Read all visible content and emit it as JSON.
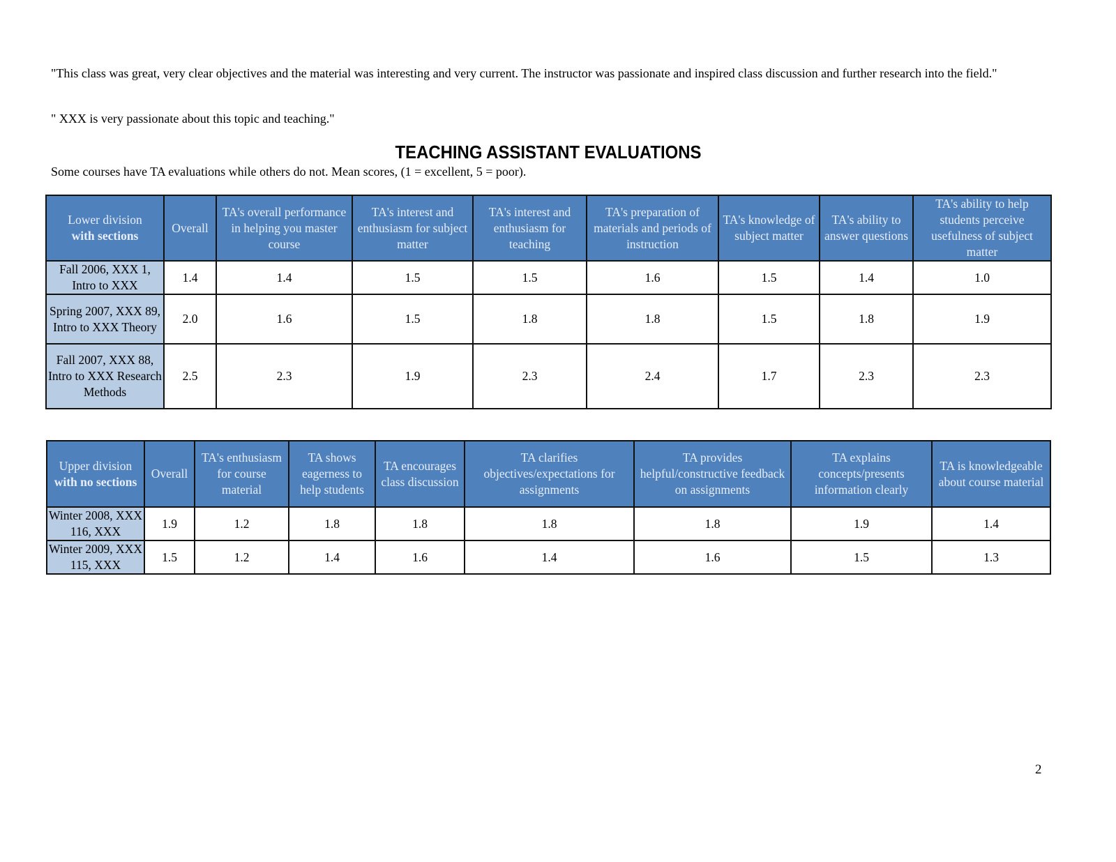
{
  "quotes": [
    "\"This class was great, very clear objectives and the material was interesting and very current. The instructor was passionate and inspired class discussion and further research into the field.\"",
    "\" XXX is very passionate about this topic and teaching.\""
  ],
  "section_title": "TEACHING ASSISTANT EVALUATIONS",
  "subtitle": "Some courses have TA evaluations while others do not. Mean scores, (1 = excellent, 5 = poor).",
  "colors": {
    "header_bg": "#4f81bd",
    "row_header_bg": "#b8cce4"
  },
  "lower_division": {
    "corner_line1": "Lower division",
    "corner_line2": "with sections",
    "headers": [
      "Overall",
      "TA's overall performance in helping you master course",
      "TA's interest and enthusiasm for subject matter",
      "TA's interest and enthusiasm for teaching",
      "TA's preparation of materials and periods of instruction",
      "TA's knowledge of subject matter",
      "TA's ability to answer questions",
      "TA's ability to help students perceive usefulness of subject matter"
    ],
    "rows": [
      {
        "course": "Fall 2006, XXX 1, Intro to XXX",
        "values": [
          "1.4",
          "1.4",
          "1.5",
          "1.5",
          "1.6",
          "1.5",
          "1.4",
          "1.0"
        ]
      },
      {
        "course": "Spring 2007, XXX 89, Intro to XXX Theory",
        "values": [
          "2.0",
          "1.6",
          "1.5",
          "1.8",
          "1.8",
          "1.5",
          "1.8",
          "1.9"
        ]
      },
      {
        "course": "Fall 2007, XXX 88, Intro to XXX Research Methods",
        "values": [
          "2.5",
          "2.3",
          "1.9",
          "2.3",
          "2.4",
          "1.7",
          "2.3",
          "2.3"
        ]
      }
    ]
  },
  "upper_division": {
    "corner_line1": "Upper division",
    "corner_line2": "with no sections",
    "headers": [
      "Overall",
      "TA's enthusiasm for course material",
      "TA shows eagerness to help students",
      "TA encourages class discussion",
      "TA clarifies objectives/expectations for assignments",
      "TA provides helpful/constructive feedback on assignments",
      "TA explains concepts/presents information clearly",
      "TA is knowledgeable about course material"
    ],
    "rows": [
      {
        "course": "Winter 2008, XXX 116, XXX",
        "values": [
          "1.9",
          "1.2",
          "1.8",
          "1.8",
          "1.8",
          "1.8",
          "1.9",
          "1.4"
        ]
      },
      {
        "course": "Winter 2009, XXX 115, XXX",
        "values": [
          "1.5",
          "1.2",
          "1.4",
          "1.6",
          "1.4",
          "1.6",
          "1.5",
          "1.3"
        ]
      }
    ]
  },
  "page_number": "2"
}
